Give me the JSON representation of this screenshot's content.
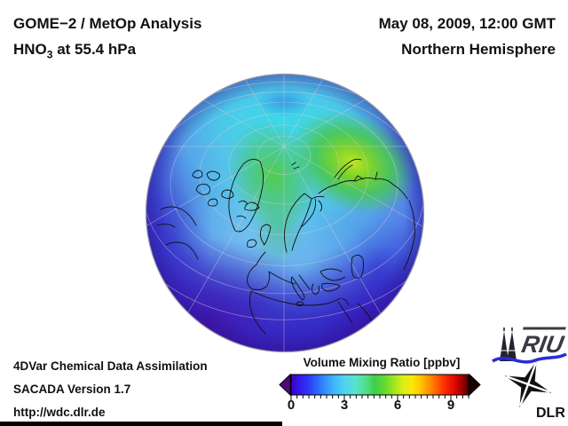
{
  "header": {
    "analysis_line": "GOME−2 / MetOp Analysis",
    "species_prefix": "HNO",
    "species_sub": "3",
    "species_suffix": " at 55.4 hPa",
    "datetime": "May 08, 2009, 12:00 GMT",
    "hemisphere": "Northern Hemisphere"
  },
  "globe": {
    "projection": "orthographic",
    "view": "Northern Hemisphere seen from above Europe / North Pole",
    "graticule_color": "#d8cada",
    "coastline_color": "#101010",
    "regions": [
      {
        "name": "central Siberia maximum",
        "approx_value_ppbv": 5.5,
        "color": "#bfe329"
      },
      {
        "name": "Greenland / NE Canada patch",
        "approx_value_ppbv": 4.5,
        "color": "#52cb3e"
      },
      {
        "name": "polar background",
        "approx_value_ppbv": 3.0,
        "color": "#45d2e2"
      },
      {
        "name": "mid-latitudes (Europe, N Atlantic)",
        "approx_value_ppbv": 2.2,
        "color": "#7cc6f2"
      },
      {
        "name": "subtropical rim",
        "approx_value_ppbv": 1.0,
        "color": "#3b16b4"
      }
    ]
  },
  "colorbar": {
    "title": "Volume Mixing Ratio [ppbv]",
    "unit": "ppbv",
    "range": [
      0,
      10
    ],
    "ticks": [
      "0",
      "3",
      "6",
      "9"
    ],
    "left_arrow_color": "#4b0a7a",
    "right_arrow_color": "#1d0000",
    "gradient_stops": [
      [
        0.0,
        "#3a00c8"
      ],
      [
        0.04,
        "#3414e6"
      ],
      [
        0.1,
        "#2b3cf5"
      ],
      [
        0.17,
        "#2f7bff"
      ],
      [
        0.24,
        "#3fb5fb"
      ],
      [
        0.3,
        "#4fd3f0"
      ],
      [
        0.36,
        "#58e2cf"
      ],
      [
        0.42,
        "#53de8d"
      ],
      [
        0.47,
        "#3ecf4a"
      ],
      [
        0.53,
        "#67d92e"
      ],
      [
        0.58,
        "#9fe620"
      ],
      [
        0.63,
        "#d8ef14"
      ],
      [
        0.68,
        "#fce80a"
      ],
      [
        0.73,
        "#ffc400"
      ],
      [
        0.78,
        "#ff9000"
      ],
      [
        0.83,
        "#ff5500"
      ],
      [
        0.875,
        "#f92300"
      ],
      [
        0.92,
        "#e00800"
      ],
      [
        0.96,
        "#a50000"
      ],
      [
        1.0,
        "#4a0000"
      ]
    ]
  },
  "footer": {
    "line1": "4DVar Chemical Data Assimilation",
    "line2": "SACADA Version 1.7",
    "line3": "http://wdc.dlr.de"
  },
  "logos": {
    "riu_label": "RIU",
    "dlr_label": "DLR",
    "riu_wave_color": "#2b2bd6"
  }
}
